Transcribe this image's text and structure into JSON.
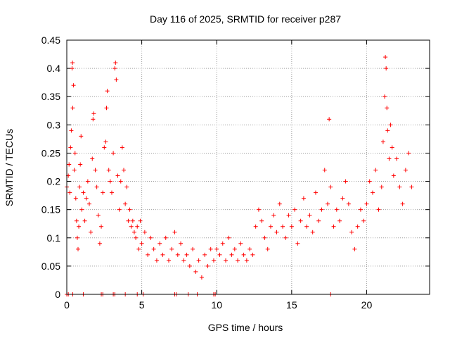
{
  "chart_data": {
    "type": "scatter",
    "title": "Day 116 of 2025, SRMTID for receiver p287",
    "xlabel": "GPS time / hours",
    "ylabel": "SRMTID / TECUs",
    "xlim": [
      0,
      24.2
    ],
    "ylim": [
      0,
      0.45
    ],
    "xticks": [
      0,
      5,
      10,
      15,
      20
    ],
    "xtick_labels": [
      "0",
      "5",
      "10",
      "15",
      "20"
    ],
    "yticks": [
      0,
      0.05,
      0.1,
      0.15,
      0.2,
      0.25,
      0.3,
      0.35,
      0.4,
      0.45
    ],
    "ytick_labels": [
      "0",
      "0.05",
      "0.1",
      "0.15",
      "0.2",
      "0.25",
      "0.3",
      "0.35",
      "0.4",
      "0.45"
    ],
    "grid": true,
    "marker": "plus",
    "color": "#ff0000",
    "series": [
      {
        "name": "SRMTID",
        "points": [
          [
            0.0,
            0.19
          ],
          [
            0.1,
            0.21
          ],
          [
            0.15,
            0.23
          ],
          [
            0.2,
            0.18
          ],
          [
            0.25,
            0.26
          ],
          [
            0.3,
            0.29
          ],
          [
            0.35,
            0.4
          ],
          [
            0.38,
            0.41
          ],
          [
            0.4,
            0.33
          ],
          [
            0.45,
            0.37
          ],
          [
            0.5,
            0.22
          ],
          [
            0.55,
            0.25
          ],
          [
            0.6,
            0.17
          ],
          [
            0.65,
            0.13
          ],
          [
            0.7,
            0.1
          ],
          [
            0.75,
            0.08
          ],
          [
            0.8,
            0.12
          ],
          [
            0.85,
            0.19
          ],
          [
            0.9,
            0.23
          ],
          [
            0.95,
            0.28
          ],
          [
            1.0,
            0.15
          ],
          [
            1.1,
            0.18
          ],
          [
            1.2,
            0.13
          ],
          [
            1.3,
            0.17
          ],
          [
            1.4,
            0.2
          ],
          [
            1.5,
            0.16
          ],
          [
            1.6,
            0.11
          ],
          [
            1.7,
            0.24
          ],
          [
            1.75,
            0.31
          ],
          [
            1.8,
            0.32
          ],
          [
            1.9,
            0.22
          ],
          [
            2.0,
            0.19
          ],
          [
            2.1,
            0.14
          ],
          [
            2.2,
            0.09
          ],
          [
            2.3,
            0.12
          ],
          [
            2.4,
            0.18
          ],
          [
            2.5,
            0.26
          ],
          [
            2.6,
            0.27
          ],
          [
            2.65,
            0.33
          ],
          [
            2.7,
            0.36
          ],
          [
            2.8,
            0.22
          ],
          [
            2.9,
            0.2
          ],
          [
            3.0,
            0.18
          ],
          [
            3.1,
            0.25
          ],
          [
            3.2,
            0.4
          ],
          [
            3.25,
            0.41
          ],
          [
            3.3,
            0.38
          ],
          [
            3.4,
            0.21
          ],
          [
            3.5,
            0.15
          ],
          [
            3.6,
            0.2
          ],
          [
            3.7,
            0.26
          ],
          [
            3.8,
            0.22
          ],
          [
            3.9,
            0.16
          ],
          [
            4.0,
            0.19
          ],
          [
            4.1,
            0.13
          ],
          [
            4.2,
            0.15
          ],
          [
            4.3,
            0.12
          ],
          [
            4.4,
            0.13
          ],
          [
            4.5,
            0.11
          ],
          [
            4.6,
            0.1
          ],
          [
            4.7,
            0.12
          ],
          [
            4.8,
            0.08
          ],
          [
            4.9,
            0.13
          ],
          [
            5.0,
            0.09
          ],
          [
            5.2,
            0.11
          ],
          [
            5.4,
            0.07
          ],
          [
            5.6,
            0.1
          ],
          [
            5.8,
            0.08
          ],
          [
            6.0,
            0.06
          ],
          [
            6.2,
            0.09
          ],
          [
            6.4,
            0.07
          ],
          [
            6.6,
            0.1
          ],
          [
            6.8,
            0.06
          ],
          [
            7.0,
            0.08
          ],
          [
            7.2,
            0.11
          ],
          [
            7.4,
            0.07
          ],
          [
            7.6,
            0.09
          ],
          [
            7.8,
            0.06
          ],
          [
            8.0,
            0.07
          ],
          [
            8.2,
            0.05
          ],
          [
            8.4,
            0.08
          ],
          [
            8.6,
            0.04
          ],
          [
            8.8,
            0.06
          ],
          [
            9.0,
            0.03
          ],
          [
            9.2,
            0.07
          ],
          [
            9.4,
            0.05
          ],
          [
            9.6,
            0.08
          ],
          [
            9.8,
            0.06
          ],
          [
            10.0,
            0.08
          ],
          [
            10.2,
            0.07
          ],
          [
            10.4,
            0.09
          ],
          [
            10.6,
            0.06
          ],
          [
            10.8,
            0.1
          ],
          [
            11.0,
            0.07
          ],
          [
            11.2,
            0.08
          ],
          [
            11.4,
            0.06
          ],
          [
            11.6,
            0.09
          ],
          [
            11.8,
            0.07
          ],
          [
            12.0,
            0.06
          ],
          [
            12.2,
            0.08
          ],
          [
            12.4,
            0.07
          ],
          [
            12.6,
            0.12
          ],
          [
            12.8,
            0.15
          ],
          [
            13.0,
            0.13
          ],
          [
            13.2,
            0.1
          ],
          [
            13.4,
            0.08
          ],
          [
            13.6,
            0.12
          ],
          [
            13.8,
            0.14
          ],
          [
            14.0,
            0.11
          ],
          [
            14.2,
            0.16
          ],
          [
            14.4,
            0.12
          ],
          [
            14.6,
            0.1
          ],
          [
            14.8,
            0.14
          ],
          [
            15.0,
            0.12
          ],
          [
            15.2,
            0.15
          ],
          [
            15.4,
            0.09
          ],
          [
            15.6,
            0.13
          ],
          [
            15.8,
            0.17
          ],
          [
            16.0,
            0.12
          ],
          [
            16.2,
            0.14
          ],
          [
            16.4,
            0.11
          ],
          [
            16.6,
            0.18
          ],
          [
            16.8,
            0.13
          ],
          [
            17.0,
            0.15
          ],
          [
            17.2,
            0.22
          ],
          [
            17.4,
            0.16
          ],
          [
            17.5,
            0.31
          ],
          [
            17.6,
            0.19
          ],
          [
            17.8,
            0.12
          ],
          [
            18.0,
            0.15
          ],
          [
            18.2,
            0.13
          ],
          [
            18.4,
            0.17
          ],
          [
            18.6,
            0.2
          ],
          [
            18.8,
            0.16
          ],
          [
            19.0,
            0.11
          ],
          [
            19.2,
            0.08
          ],
          [
            19.4,
            0.12
          ],
          [
            19.6,
            0.15
          ],
          [
            19.8,
            0.13
          ],
          [
            20.0,
            0.16
          ],
          [
            20.2,
            0.2
          ],
          [
            20.4,
            0.18
          ],
          [
            20.6,
            0.22
          ],
          [
            20.8,
            0.15
          ],
          [
            21.0,
            0.19
          ],
          [
            21.1,
            0.27
          ],
          [
            21.2,
            0.35
          ],
          [
            21.25,
            0.42
          ],
          [
            21.3,
            0.4
          ],
          [
            21.35,
            0.33
          ],
          [
            21.4,
            0.29
          ],
          [
            21.5,
            0.24
          ],
          [
            21.6,
            0.3
          ],
          [
            21.7,
            0.26
          ],
          [
            21.8,
            0.21
          ],
          [
            22.0,
            0.24
          ],
          [
            22.2,
            0.19
          ],
          [
            22.4,
            0.16
          ],
          [
            22.6,
            0.22
          ],
          [
            22.8,
            0.25
          ],
          [
            23.0,
            0.19
          ]
        ]
      }
    ],
    "zero_points_x": [
      0.0,
      0.1,
      0.4,
      1.1,
      2.3,
      2.4,
      3.1,
      3.2,
      3.9,
      4.7,
      5.1,
      7.2,
      7.3,
      8.1,
      8.7,
      9.8,
      9.9,
      17.6
    ]
  }
}
